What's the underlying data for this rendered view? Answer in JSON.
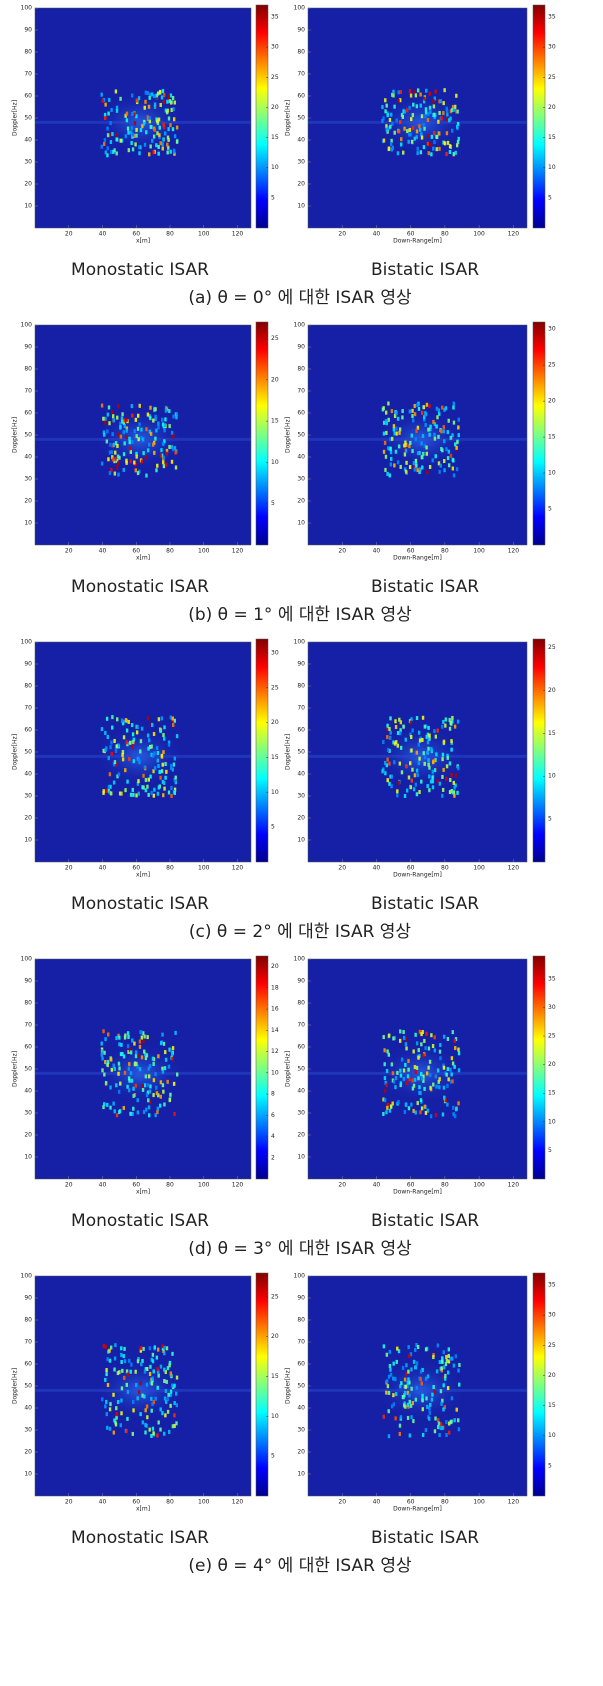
{
  "figure": {
    "panels": [
      {
        "caption": "(a) θ = 0° 에 대한 ISAR 영상",
        "plots": [
          {
            "caption": "Monostatic ISAR",
            "xlabel": "x[m]",
            "ylabel": "Doppler[Hz]",
            "xlim": [
              0,
              128
            ],
            "ylim": [
              0,
              100
            ],
            "xticks": [
              20,
              40,
              60,
              80,
              100,
              120
            ],
            "yticks": [
              10,
              20,
              30,
              40,
              50,
              60,
              70,
              80,
              90,
              100
            ],
            "clim": [
              0,
              37
            ],
            "cticks": [
              5,
              10,
              15,
              20,
              25,
              30,
              35
            ]
          },
          {
            "caption": "Bistatic ISAR",
            "xlabel": "Down-Range[m]",
            "ylabel": "Doppler[Hz]",
            "xlim": [
              0,
              128
            ],
            "ylim": [
              0,
              100
            ],
            "xticks": [
              20,
              40,
              60,
              80,
              100,
              120
            ],
            "yticks": [
              10,
              20,
              30,
              40,
              50,
              60,
              70,
              80,
              90,
              100
            ],
            "clim": [
              0,
              37
            ],
            "cticks": [
              5,
              10,
              15,
              20,
              25,
              30,
              35
            ]
          }
        ]
      },
      {
        "caption": "(b) θ = 1° 에 대한 ISAR 영상",
        "plots": [
          {
            "caption": "Monostatic ISAR",
            "xlabel": "x[m]",
            "ylabel": "Doppler[Hz]",
            "xlim": [
              0,
              128
            ],
            "ylim": [
              0,
              100
            ],
            "xticks": [
              20,
              40,
              60,
              80,
              100,
              120
            ],
            "yticks": [
              10,
              20,
              30,
              40,
              50,
              60,
              70,
              80,
              90,
              100
            ],
            "clim": [
              0,
              27
            ],
            "cticks": [
              5,
              10,
              15,
              20,
              25
            ]
          },
          {
            "caption": "Bistatic ISAR",
            "xlabel": "Down-Range[m]",
            "ylabel": "Doppler[Hz]",
            "xlim": [
              0,
              128
            ],
            "ylim": [
              0,
              100
            ],
            "xticks": [
              20,
              40,
              60,
              80,
              100,
              120
            ],
            "yticks": [
              10,
              20,
              30,
              40,
              50,
              60,
              70,
              80,
              90,
              100
            ],
            "clim": [
              0,
              31
            ],
            "cticks": [
              5,
              10,
              15,
              20,
              25,
              30
            ]
          }
        ]
      },
      {
        "caption": "(c) θ = 2° 에 대한 ISAR 영상",
        "plots": [
          {
            "caption": "Monostatic ISAR",
            "xlabel": "x[m]",
            "ylabel": "Doppler[Hz]",
            "xlim": [
              0,
              128
            ],
            "ylim": [
              0,
              100
            ],
            "xticks": [
              20,
              40,
              60,
              80,
              100,
              120
            ],
            "yticks": [
              10,
              20,
              30,
              40,
              50,
              60,
              70,
              80,
              90,
              100
            ],
            "clim": [
              0,
              32
            ],
            "cticks": [
              5,
              10,
              15,
              20,
              25,
              30
            ]
          },
          {
            "caption": "Bistatic ISAR",
            "xlabel": "Down-Range[m]",
            "ylabel": "Doppler[Hz]",
            "xlim": [
              0,
              128
            ],
            "ylim": [
              0,
              100
            ],
            "xticks": [
              20,
              40,
              60,
              80,
              100,
              120
            ],
            "yticks": [
              10,
              20,
              30,
              40,
              50,
              60,
              70,
              80,
              90,
              100
            ],
            "clim": [
              0,
              26
            ],
            "cticks": [
              5,
              10,
              15,
              20,
              25
            ]
          }
        ]
      },
      {
        "caption": "(d) θ = 3° 에 대한 ISAR 영상",
        "plots": [
          {
            "caption": "Monostatic ISAR",
            "xlabel": "x[m]",
            "ylabel": "Doppler[Hz]",
            "xlim": [
              0,
              128
            ],
            "ylim": [
              0,
              100
            ],
            "xticks": [
              20,
              40,
              60,
              80,
              100,
              120
            ],
            "yticks": [
              10,
              20,
              30,
              40,
              50,
              60,
              70,
              80,
              90,
              100
            ],
            "clim": [
              0,
              21
            ],
            "cticks": [
              2,
              4,
              6,
              8,
              10,
              12,
              14,
              16,
              18,
              20
            ]
          },
          {
            "caption": "Bistatic ISAR",
            "xlabel": "Down-Range[m]",
            "ylabel": "Doppler[Hz]",
            "xlim": [
              0,
              128
            ],
            "ylim": [
              0,
              100
            ],
            "xticks": [
              20,
              40,
              60,
              80,
              100,
              120
            ],
            "yticks": [
              10,
              20,
              30,
              40,
              50,
              60,
              70,
              80,
              90,
              100
            ],
            "clim": [
              0,
              39
            ],
            "cticks": [
              5,
              10,
              15,
              20,
              25,
              30,
              35
            ]
          }
        ]
      },
      {
        "caption": "(e) θ = 4° 에 대한 ISAR 영상",
        "plots": [
          {
            "caption": "Monostatic ISAR",
            "xlabel": "x[m]",
            "ylabel": "Doppler[Hz]",
            "xlim": [
              0,
              128
            ],
            "ylim": [
              0,
              100
            ],
            "xticks": [
              20,
              40,
              60,
              80,
              100,
              120
            ],
            "yticks": [
              10,
              20,
              30,
              40,
              50,
              60,
              70,
              80,
              90,
              100
            ],
            "clim": [
              0,
              28
            ],
            "cticks": [
              5,
              10,
              15,
              20,
              25
            ]
          },
          {
            "caption": "Bistatic ISAR",
            "xlabel": "Down-Range[m]",
            "ylabel": "Doppler[Hz]",
            "xlim": [
              0,
              128
            ],
            "ylim": [
              0,
              100
            ],
            "xticks": [
              20,
              40,
              60,
              80,
              100,
              120
            ],
            "yticks": [
              10,
              20,
              30,
              40,
              50,
              60,
              70,
              80,
              90,
              100
            ],
            "clim": [
              0,
              37
            ],
            "cticks": [
              5,
              10,
              15,
              20,
              25,
              30,
              35
            ]
          }
        ]
      }
    ]
  }
}
